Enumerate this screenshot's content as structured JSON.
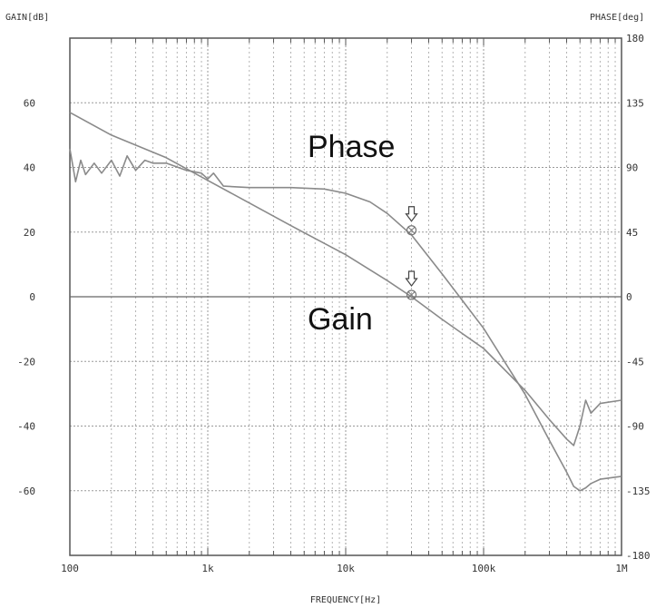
{
  "chart_data": {
    "type": "line",
    "title": "",
    "xlabel": "FREQUENCY[Hz]",
    "ylabel": "GAIN[dB]",
    "y2label": "PHASE[deg]",
    "xscale": "log",
    "xlim": [
      100,
      1000000
    ],
    "ylim": [
      -80,
      80
    ],
    "y2lim": [
      -180,
      180
    ],
    "x_ticks": [
      100,
      1000,
      10000,
      100000,
      1000000
    ],
    "x_tick_labels": [
      "100",
      "1k",
      "10k",
      "100k",
      "1M"
    ],
    "y_ticks": [
      60,
      40,
      20,
      0,
      -20,
      -40,
      -60
    ],
    "y2_ticks": [
      180,
      135,
      90,
      45,
      0,
      -45,
      -90,
      -135,
      -180
    ],
    "grid": true,
    "legend": "none",
    "series": [
      {
        "name": "Phase",
        "axis": "right",
        "x": [
          100,
          110,
          120,
          130,
          150,
          170,
          200,
          230,
          260,
          300,
          350,
          400,
          500,
          700,
          900,
          1000,
          1100,
          1300,
          2000,
          4000,
          7000,
          10000,
          15000,
          20000,
          30000,
          50000,
          100000,
          200000,
          300000,
          400000,
          450000,
          500000,
          550000,
          600000,
          700000,
          1000000
        ],
        "values": [
          103,
          80,
          95,
          85,
          93,
          86,
          95,
          84,
          98,
          88,
          95,
          93,
          93,
          88,
          86,
          82,
          86,
          77,
          76,
          76,
          75,
          72,
          66,
          58,
          43,
          16,
          -22,
          -68,
          -100,
          -122,
          -132,
          -135,
          -133,
          -130,
          -127,
          -125
        ]
      },
      {
        "name": "Gain",
        "axis": "left",
        "x": [
          100,
          200,
          500,
          1000,
          2000,
          4000,
          10000,
          20000,
          30000,
          50000,
          100000,
          200000,
          300000,
          400000,
          450000,
          500000,
          550000,
          600000,
          700000,
          1000000
        ],
        "values": [
          57,
          50,
          43,
          36,
          29,
          22,
          13,
          5,
          0,
          -7,
          -16,
          -29,
          -38,
          -44,
          -46,
          -40,
          -32,
          -36,
          -33,
          -32
        ]
      }
    ],
    "annotations": [
      {
        "text": "Phase",
        "x": 10000,
        "y2": 105
      },
      {
        "text": "Gain",
        "x": 10000,
        "y2": -15
      }
    ],
    "markers": [
      {
        "x": 30000,
        "y": 20
      },
      {
        "x": 30000,
        "y": 0
      }
    ]
  }
}
